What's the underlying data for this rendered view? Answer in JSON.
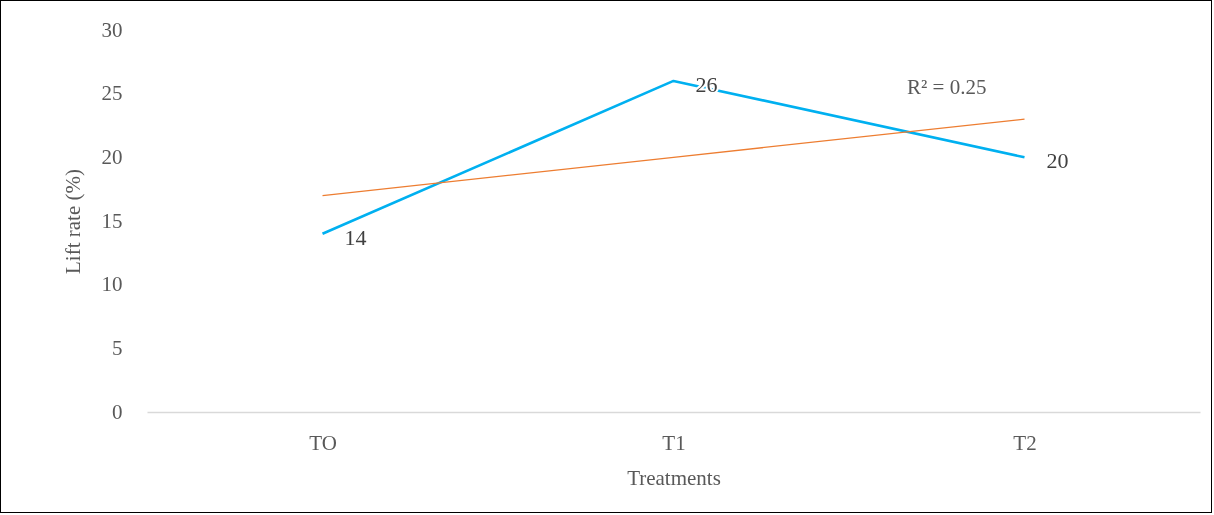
{
  "chart_data": {
    "type": "line",
    "xlabel": "Treatments",
    "ylabel": "Lift rate (%)",
    "categories": [
      "TO",
      "T1",
      "T2"
    ],
    "series": [
      {
        "color": "#00b0f0",
        "values": [
          14,
          26,
          20
        ],
        "value_labels": [
          "14",
          "26",
          "20"
        ]
      },
      {
        "type": "line",
        "color": "#ed7d31",
        "values": [
          17,
          20,
          23
        ]
      }
    ],
    "annotations": [
      "R² = 0.25"
    ],
    "ylim": [
      0,
      30
    ],
    "yticks": [
      0,
      5,
      10,
      15,
      20,
      25,
      30
    ],
    "grid": false,
    "marker": "none",
    "line_style": "solid"
  }
}
